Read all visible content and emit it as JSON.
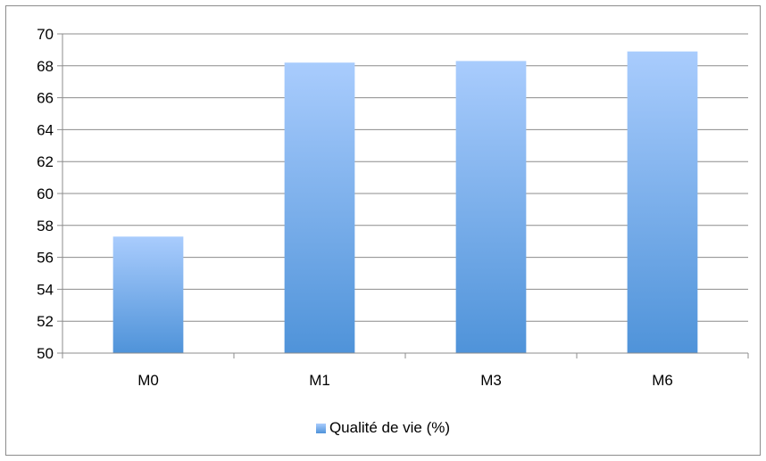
{
  "chart_data": {
    "type": "bar",
    "title": "",
    "xlabel": "",
    "ylabel": "",
    "categories": [
      "M0",
      "M1",
      "M3",
      "M6"
    ],
    "series": [
      {
        "name": "Qualité de vie (%)",
        "values": [
          57.3,
          68.2,
          68.3,
          68.9
        ]
      }
    ],
    "ylim": [
      50,
      70
    ],
    "yticks": [
      50,
      52,
      54,
      56,
      58,
      60,
      62,
      64,
      66,
      68,
      70
    ],
    "grid": true,
    "legend_position": "bottom",
    "colors": {
      "bar_top": "#a9ccfd",
      "bar_bottom": "#4f93d9",
      "grid": "#8c8c8c",
      "axis": "#8c8c8c"
    }
  }
}
